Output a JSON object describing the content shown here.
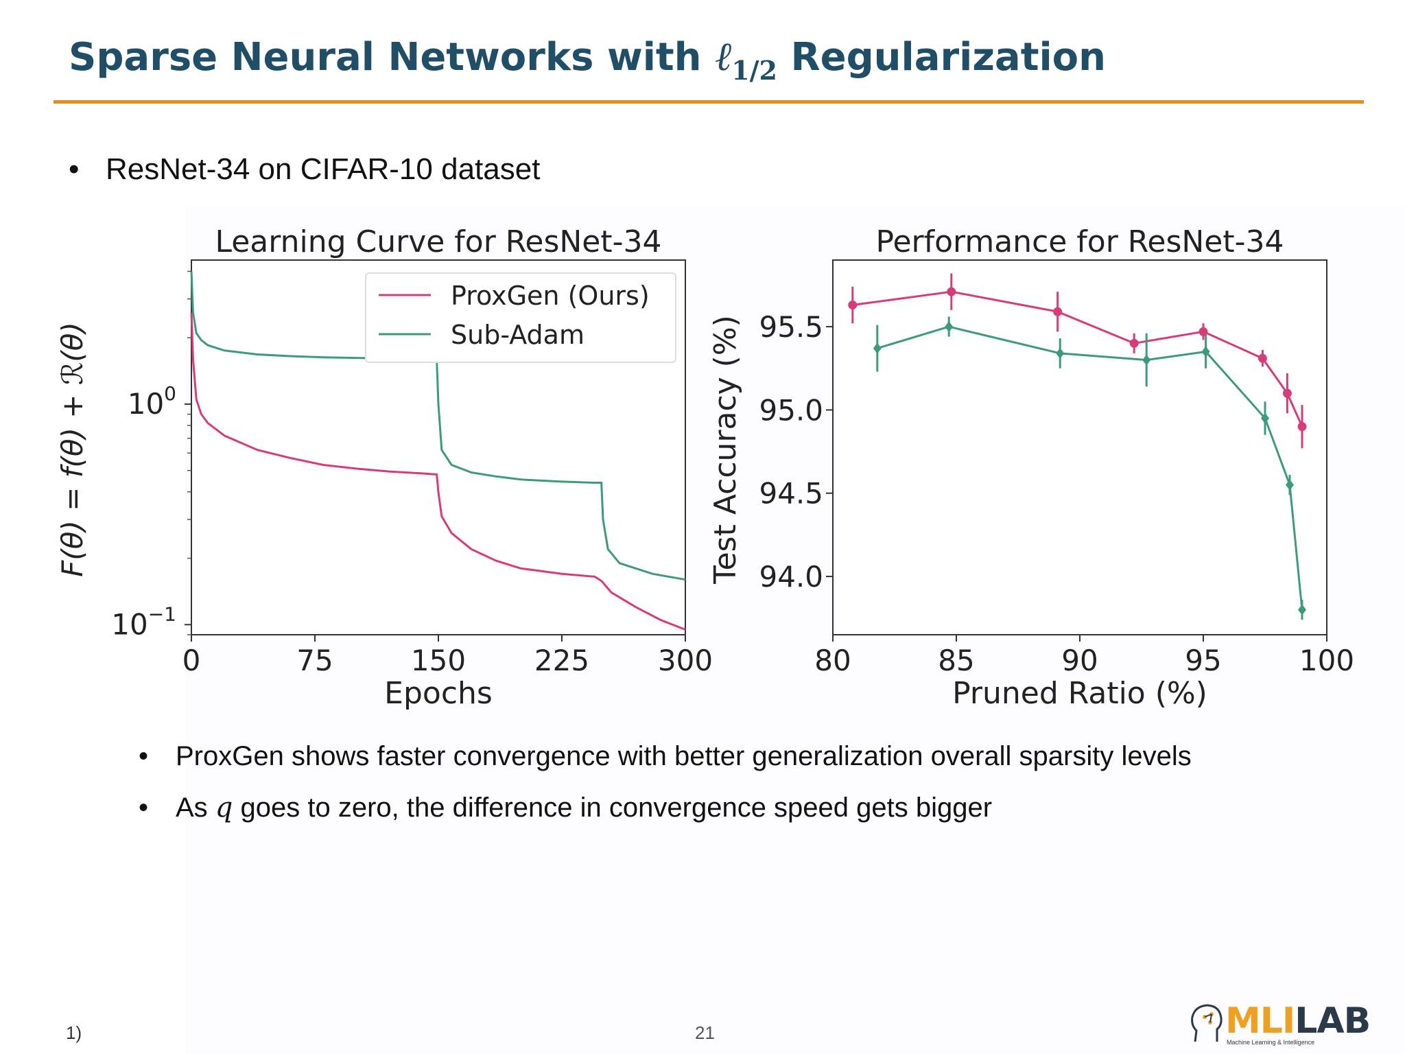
{
  "slide": {
    "title_prefix": "Sparse Neural Networks with ",
    "title_ell": "ℓ",
    "title_sub": "1/2",
    "title_suffix": " Regularization",
    "bullet_main": "ResNet-34 on CIFAR-10 dataset",
    "sub_bullets": [
      {
        "text": "ProxGen shows faster convergence with better generalization overall sparsity levels"
      },
      {
        "pre": "As ",
        "var": "q",
        "post": " goes to zero, the difference in convergence speed gets bigger"
      }
    ],
    "footer_left": "1)",
    "page_number": "21",
    "logo_text": "MLILAB",
    "logo_subtitle": "Machine Learning & Intelligence"
  },
  "colors": {
    "title": "#1f4e66",
    "rule": "#ee8a1a",
    "proxgen": "#d63b7a",
    "subadam": "#3d9a7c",
    "logo_orange": "#f0a020",
    "logo_dark": "#2b3a4a"
  },
  "chart_data": [
    {
      "type": "line",
      "title": "Learning Curve for ResNet-34",
      "xlabel": "Epochs",
      "ylabel": "F(θ) = f(θ) + ℛ(θ)",
      "yscale": "log",
      "xlim": [
        0,
        300
      ],
      "ylim": [
        0.09,
        4.5
      ],
      "xticks": [
        0,
        75,
        150,
        225,
        300
      ],
      "yticks": [
        {
          "value": 1,
          "base": "10",
          "exp": "0"
        },
        {
          "value": 0.1,
          "base": "10",
          "exp": "−1"
        }
      ],
      "legend": {
        "position": "top-right"
      },
      "series": [
        {
          "name": "ProxGen (Ours)",
          "color": "#d63b7a",
          "x": [
            0,
            1,
            3,
            6,
            10,
            20,
            40,
            60,
            80,
            100,
            120,
            140,
            149,
            150,
            152,
            158,
            170,
            185,
            200,
            225,
            245,
            249,
            250,
            255,
            270,
            285,
            300
          ],
          "y": [
            2.6,
            1.6,
            1.05,
            0.9,
            0.82,
            0.72,
            0.62,
            0.57,
            0.53,
            0.51,
            0.495,
            0.485,
            0.48,
            0.4,
            0.31,
            0.26,
            0.22,
            0.195,
            0.18,
            0.17,
            0.165,
            0.158,
            0.155,
            0.14,
            0.12,
            0.105,
            0.095
          ]
        },
        {
          "name": "Sub-Adam",
          "color": "#3d9a7c",
          "x": [
            0,
            1,
            3,
            6,
            10,
            20,
            40,
            60,
            80,
            100,
            120,
            140,
            149,
            150,
            152,
            158,
            170,
            185,
            200,
            225,
            245,
            249,
            250,
            253,
            260,
            280,
            300
          ],
          "y": [
            4.0,
            2.6,
            2.1,
            1.95,
            1.85,
            1.75,
            1.68,
            1.65,
            1.63,
            1.62,
            1.61,
            1.6,
            1.6,
            1.0,
            0.62,
            0.53,
            0.49,
            0.47,
            0.455,
            0.445,
            0.44,
            0.44,
            0.3,
            0.22,
            0.19,
            0.17,
            0.16
          ]
        }
      ]
    },
    {
      "type": "line",
      "title": "Performance for ResNet-34",
      "xlabel": "Pruned Ratio (%)",
      "ylabel": "Test Accuracy (%)",
      "xlim": [
        80,
        100
      ],
      "ylim": [
        93.65,
        95.9
      ],
      "xticks": [
        80,
        85,
        90,
        95,
        100
      ],
      "yticks": [
        94.0,
        94.5,
        95.0,
        95.5
      ],
      "error_bars": true,
      "series": [
        {
          "name": "ProxGen",
          "color": "#d63b7a",
          "x": [
            80.8,
            84.8,
            89.1,
            92.2,
            95.0,
            97.4,
            98.4,
            99.0
          ],
          "y": [
            95.63,
            95.71,
            95.59,
            95.4,
            95.47,
            95.31,
            95.1,
            94.9
          ],
          "err": [
            0.11,
            0.11,
            0.12,
            0.06,
            0.05,
            0.05,
            0.12,
            0.13
          ]
        },
        {
          "name": "Sub-Adam",
          "color": "#3d9a7c",
          "x": [
            81.8,
            84.7,
            89.2,
            92.7,
            95.1,
            97.5,
            98.5,
            99.0
          ],
          "y": [
            95.37,
            95.5,
            95.34,
            95.3,
            95.35,
            94.95,
            94.55,
            93.8
          ],
          "err": [
            0.14,
            0.06,
            0.09,
            0.16,
            0.1,
            0.1,
            0.06,
            0.06
          ]
        }
      ]
    }
  ]
}
